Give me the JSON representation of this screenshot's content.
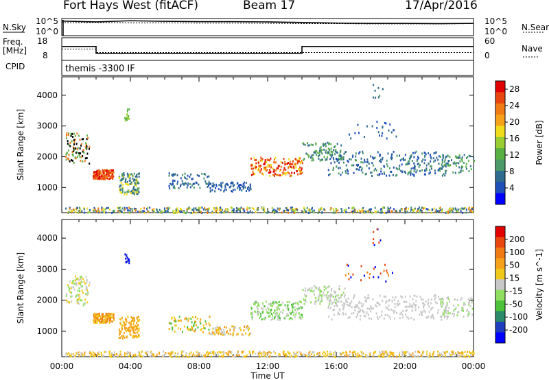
{
  "header": {
    "radar": "Fort Hays West (fitACF)",
    "beam": "Beam 17",
    "date": "17/Apr/2016"
  },
  "colors": {
    "data_line": "#000000",
    "power_scale": [
      "#0000ff",
      "#1f4fb8",
      "#2e6b8e",
      "#4c9a6a",
      "#58b043",
      "#9acd32",
      "#f0dc1a",
      "#f5a21a",
      "#f07a14",
      "#e8450f",
      "#e00000"
    ],
    "velocity_scale": [
      "#0000ff",
      "#1f3fbf",
      "#2a8a6a",
      "#4cc23a",
      "#8fe060",
      "#c8c8c8",
      "#f0c81a",
      "#f5a21a",
      "#f07a14",
      "#e8450f",
      "#e00000"
    ]
  },
  "chart_data": [
    {
      "type": "line",
      "title": "Fort Hays West (fitACF)",
      "series": [
        {
          "name": "N.Sky"
        },
        {
          "name": "N.Search"
        }
      ],
      "left_label": "N.Sky",
      "right_label": "N.Search",
      "left_ticks": [
        "10^5",
        "10^0"
      ],
      "right_ticks": [
        "10^5",
        "10^0"
      ],
      "x": [
        0,
        2,
        4,
        6,
        8,
        10,
        12,
        14,
        16,
        18,
        20,
        22,
        24
      ],
      "nsky_log": [
        4.6,
        4.3,
        4.7,
        4.5,
        4.4,
        4.4,
        4.3,
        4.1,
        3.9,
        3.8,
        3.8,
        3.7,
        3.8
      ],
      "nsearch_log": [
        4.0,
        4.1,
        4.0,
        4.0,
        3.9,
        3.9,
        3.8,
        3.7,
        3.7,
        3.6,
        3.6,
        3.6,
        3.7
      ],
      "ylim": [
        0,
        5
      ]
    },
    {
      "type": "line",
      "left_label_top": "Freq.",
      "left_label_bottom": "[MHz]",
      "cpid_label": "CPID",
      "right_label": "Nave",
      "left_ticks": [
        "18",
        "8"
      ],
      "right_ticks": [
        "60",
        "0"
      ],
      "series": [
        {
          "name": "Freq.",
          "x": [
            0,
            2.0,
            2.0,
            14.0,
            14.0,
            24
          ],
          "y": [
            14.5,
            14.5,
            10.5,
            10.5,
            14.5,
            14.5
          ]
        },
        {
          "name": "Nave",
          "x": [
            0,
            2.0,
            2.0,
            24
          ],
          "y": [
            30,
            30,
            18,
            18
          ]
        }
      ],
      "ylim": [
        8,
        18
      ],
      "cpid_text": "themis -3300 IF"
    },
    {
      "type": "heatmap",
      "ylabel": "Slant Range [km]",
      "yticks": [
        1000,
        2000,
        3000,
        4000
      ],
      "ylim": [
        180,
        4600
      ],
      "xlim": [
        0,
        24
      ],
      "colorbar_label": "Power [dB]",
      "colorbar_ticks": [
        4,
        8,
        12,
        16,
        20,
        24,
        28
      ],
      "clim": [
        0,
        30
      ]
    },
    {
      "type": "heatmap",
      "ylabel": "Slant Range [km]",
      "yticks": [
        1000,
        2000,
        3000,
        4000
      ],
      "ylim": [
        180,
        4600
      ],
      "xlim": [
        0,
        24
      ],
      "colorbar_label": "Velocity [m s^-1]",
      "colorbar_ticks": [
        "200",
        "100",
        "50",
        "15",
        "-15",
        "-50",
        "-100",
        "-200"
      ],
      "xlabel": "Time UT",
      "xticks": [
        "00:00",
        "04:00",
        "08:00",
        "12:00",
        "16:00",
        "20:00",
        "00:00"
      ]
    }
  ]
}
